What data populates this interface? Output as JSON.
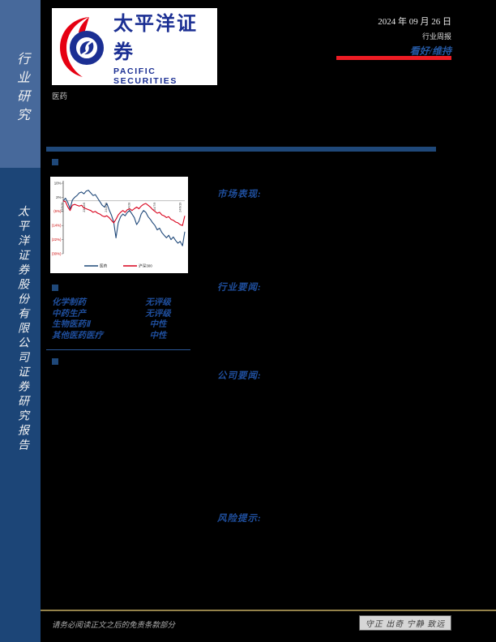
{
  "sidebar": {
    "top_label": "行业研究",
    "bottom_label": "太平洋证券股份有限公司证券研究报告",
    "top_color": "#47699B",
    "bottom_color": "#1C4577"
  },
  "header": {
    "logo_cn": "太平洋证券",
    "logo_en": "PACIFIC SECURITIES",
    "date": "2024 年 09 月 26 日",
    "report_type": "行业周报",
    "rating": "看好/维持",
    "industry": "医药"
  },
  "sections": {
    "market_label": "市场表现:",
    "industry_news_label": "行业要闻:",
    "company_news_label": "公司要闻:",
    "risk_label": "风险提示:"
  },
  "ratings_table": {
    "rows": [
      {
        "name": "化学制药",
        "rating": "无评级"
      },
      {
        "name": "中药生产",
        "rating": "无评级"
      },
      {
        "name": "生物医药Ⅱ",
        "rating": "中性"
      },
      {
        "name": "其他医药医疗",
        "rating": "中性"
      }
    ]
  },
  "chart_data": {
    "type": "line",
    "title": "",
    "xlabel": "",
    "ylabel": "",
    "ylim": [
      -30,
      10
    ],
    "grid": false,
    "legend_position": "bottom",
    "y_ticks": [
      {
        "label": "10%",
        "value": 10
      },
      {
        "label": "2%",
        "value": 2
      },
      {
        "label": "(6%)",
        "value": -6
      },
      {
        "label": "(14%)",
        "value": -14
      },
      {
        "label": "(22%)",
        "value": -22
      },
      {
        "label": "(30%)",
        "value": -30
      }
    ],
    "x_ticks": [
      {
        "label": "23/9/26",
        "pos": 0.0
      },
      {
        "label": "23/12/6",
        "pos": 0.18
      },
      {
        "label": "24/2/16",
        "pos": 0.36
      },
      {
        "label": "24/4/28",
        "pos": 0.55
      },
      {
        "label": "24/7/9",
        "pos": 0.76
      },
      {
        "label": "24/9/19",
        "pos": 0.97
      }
    ],
    "series": [
      {
        "name": "医药",
        "color": "#1F4879",
        "values": [
          0,
          1.5,
          -1,
          -4.5,
          0.5,
          2,
          3,
          4.5,
          5,
          4,
          5.5,
          6,
          4.5,
          3,
          3.5,
          1.5,
          -0.5,
          -2.5,
          -3.5,
          -1.5,
          -5,
          -8,
          -12,
          -21,
          -12.5,
          -9,
          -7.5,
          -8.5,
          -6.5,
          -5.5,
          -7.5,
          -9.5,
          -13.5,
          -11.5,
          -7.5,
          -5.5,
          -6.5,
          -9,
          -10.5,
          -12.5,
          -14,
          -16.5,
          -15.5,
          -18,
          -19.5,
          -21,
          -19.5,
          -22,
          -20.5,
          -22.5,
          -24,
          -23,
          -25.5,
          -17.5
        ]
      },
      {
        "name": "沪深300",
        "color": "#D9001B",
        "values": [
          0,
          -0.5,
          -3.5,
          -5.5,
          -2.5,
          -2,
          -2.5,
          -3,
          -2.5,
          -4,
          -4.5,
          -5,
          -5.5,
          -6.5,
          -6,
          -7,
          -7.5,
          -8.5,
          -9,
          -8.5,
          -9.5,
          -11,
          -12.5,
          -10.5,
          -8,
          -6.5,
          -5.5,
          -6.5,
          -5,
          -4.5,
          -5.5,
          -4.5,
          -3.5,
          -4.5,
          -3,
          -2,
          -1.5,
          -2.5,
          -3.5,
          -5,
          -6,
          -7,
          -6.5,
          -8,
          -8.5,
          -9.5,
          -9,
          -10.5,
          -11,
          -12,
          -12.5,
          -13.5,
          -14,
          -8.5
        ]
      }
    ]
  },
  "footer": {
    "disclaimer": "请务必阅读正文之后的免责条款部分",
    "motto": "守正 出奇 宁静 致远"
  },
  "colors": {
    "accent_blue": "#1F4879",
    "heading_blue": "#1F4E9C",
    "rating_red": "#ED1C24",
    "negative_tick_red": "#CC0000",
    "footer_gold": "#94824A"
  }
}
